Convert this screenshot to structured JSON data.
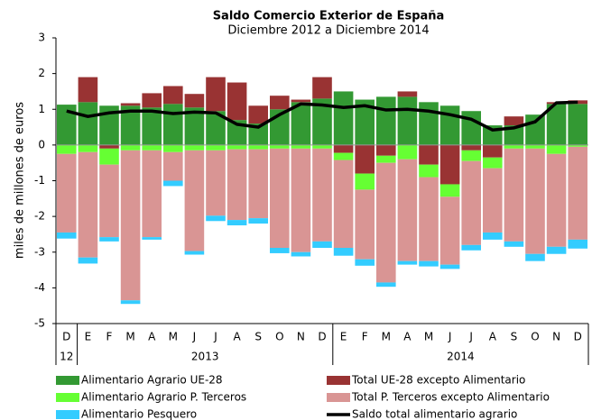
{
  "chart_data": {
    "type": "bar",
    "title": "Saldo Comercio Exterior de España",
    "subtitle": "Diciembre 2012 a Diciembre 2014",
    "y_label": "miles de millones de euros",
    "categories": [
      "D",
      "E",
      "F",
      "M",
      "A",
      "M",
      "J",
      "J",
      "A",
      "S",
      "O",
      "N",
      "D",
      "E",
      "F",
      "M",
      "A",
      "M",
      "J",
      "J",
      "A",
      "S",
      "O",
      "N",
      "D"
    ],
    "x_groups": [
      "12",
      "2013",
      "2014"
    ],
    "ylim": [
      -5,
      3
    ],
    "yticks": [
      -5,
      -4,
      -3,
      -2,
      -1,
      0,
      1,
      2,
      3
    ],
    "series": [
      {
        "name": "Alimentario Agrario UE-28",
        "color": "#339933",
        "values": [
          1.13,
          1.2,
          1.1,
          1.1,
          1.05,
          1.15,
          1.05,
          0.95,
          0.7,
          0.6,
          1.0,
          1.2,
          1.3,
          1.5,
          1.27,
          1.35,
          1.35,
          1.2,
          1.1,
          0.95,
          0.55,
          0.55,
          0.85,
          1.15,
          1.15
        ]
      },
      {
        "name": "Total UE-28  excepto Alimentario",
        "color": "#993333",
        "values": [
          0,
          0.7,
          -0.1,
          0.07,
          0.4,
          0.5,
          0.38,
          0.95,
          1.05,
          0.5,
          0.38,
          0.07,
          0.6,
          -0.22,
          -0.8,
          -0.3,
          0.15,
          -0.55,
          -1.1,
          -0.15,
          -0.35,
          0.25,
          0,
          0.05,
          0.1
        ]
      },
      {
        "name": "Alimentario Agrario P. Terceros",
        "color": "#66ff33",
        "values": [
          -0.25,
          -0.2,
          -0.45,
          -0.15,
          -0.15,
          -0.2,
          -0.15,
          -0.15,
          -0.12,
          -0.12,
          -0.1,
          -0.1,
          -0.1,
          -0.2,
          -0.45,
          -0.2,
          -0.4,
          -0.35,
          -0.35,
          -0.3,
          -0.3,
          -0.1,
          -0.1,
          -0.25,
          -0.05
        ]
      },
      {
        "name": "Total P. Terceros excepto Alimentario",
        "color": "#d99594",
        "values": [
          -2.2,
          -2.95,
          -2.03,
          -4.2,
          -2.43,
          -0.8,
          -2.82,
          -1.83,
          -1.98,
          -1.93,
          -2.78,
          -2.9,
          -2.6,
          -2.46,
          -1.95,
          -3.35,
          -2.85,
          -2.35,
          -1.9,
          -2.35,
          -1.8,
          -2.6,
          -2.95,
          -2.6,
          -2.6
        ]
      },
      {
        "name": "Alimentario Pesquero",
        "color": "#33ccff",
        "values": [
          -0.17,
          -0.17,
          -0.12,
          -0.1,
          -0.07,
          -0.15,
          -0.1,
          -0.15,
          -0.15,
          -0.15,
          -0.15,
          -0.12,
          -0.18,
          -0.22,
          -0.18,
          -0.12,
          -0.1,
          -0.15,
          -0.12,
          -0.15,
          -0.2,
          -0.15,
          -0.2,
          -0.2,
          -0.25
        ]
      },
      {
        "name": "Saldo total alimentario agrario",
        "color": "#000000",
        "type": "line",
        "values": [
          0.95,
          0.8,
          0.9,
          0.95,
          0.95,
          0.88,
          0.92,
          0.9,
          0.58,
          0.5,
          0.85,
          1.15,
          1.12,
          1.05,
          1.1,
          0.98,
          1.0,
          0.95,
          0.85,
          0.72,
          0.42,
          0.48,
          0.65,
          1.18,
          1.2
        ]
      }
    ]
  }
}
